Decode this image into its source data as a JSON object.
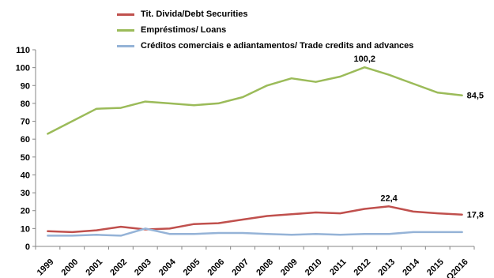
{
  "chart_data": {
    "type": "line",
    "categories": [
      "1999",
      "2000",
      "2001",
      "2002",
      "2003",
      "2004",
      "2005",
      "2006",
      "2007",
      "2008",
      "2009",
      "2010",
      "2011",
      "2012",
      "2013",
      "2014",
      "2015",
      "Q2016"
    ],
    "ylim": [
      0,
      110
    ],
    "yticks": [
      0,
      10,
      20,
      30,
      40,
      50,
      60,
      70,
      80,
      90,
      100,
      110
    ],
    "grid": false,
    "legend_position": "top-left",
    "series": [
      {
        "name": "Tit. Divida/Debt Securities",
        "color": "#c0504d",
        "values": [
          8.5,
          8.0,
          9.0,
          11.0,
          9.5,
          10.0,
          12.5,
          13.0,
          15.0,
          17.0,
          18.0,
          19.0,
          18.5,
          21.0,
          22.4,
          19.5,
          18.5,
          17.8
        ]
      },
      {
        "name": "Empréstimos/ Loans",
        "color": "#9bbb59",
        "values": [
          63.0,
          70.0,
          77.0,
          77.5,
          81.0,
          80.0,
          79.0,
          80.0,
          83.5,
          90.0,
          94.0,
          92.0,
          95.0,
          100.2,
          96.0,
          91.0,
          86.0,
          84.5
        ]
      },
      {
        "name": "Créditos comerciais e adiantamentos/ Trade credits and advances",
        "color": "#95b3d7",
        "values": [
          6.0,
          6.0,
          6.5,
          6.0,
          10.0,
          7.0,
          7.0,
          7.5,
          7.5,
          7.0,
          6.5,
          7.0,
          6.5,
          7.0,
          7.0,
          8.0,
          8.0,
          8.0
        ]
      }
    ],
    "data_labels": [
      {
        "series": 1,
        "index": 13,
        "text": "100,2"
      },
      {
        "series": 1,
        "index": 17,
        "text": "84,5"
      },
      {
        "series": 0,
        "index": 14,
        "text": "22,4"
      },
      {
        "series": 0,
        "index": 17,
        "text": "17,8"
      }
    ]
  }
}
